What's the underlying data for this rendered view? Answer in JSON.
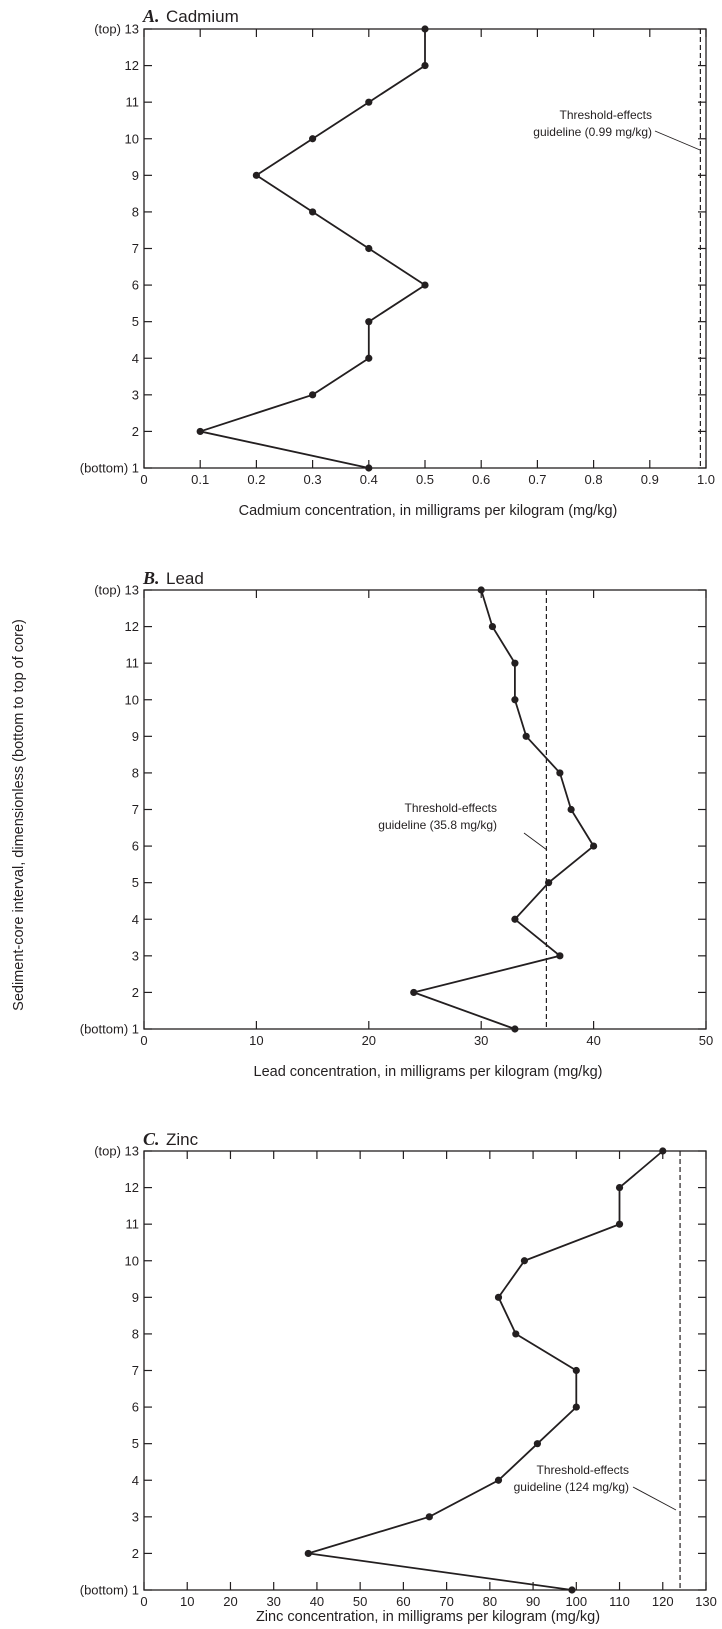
{
  "shared": {
    "ylabel": "Sediment-core interval, dimensionless (bottom to top of core)",
    "ylim": [
      1,
      13
    ],
    "y_ticks": [
      "(bottom) 1",
      "2",
      "3",
      "4",
      "5",
      "6",
      "7",
      "8",
      "9",
      "10",
      "11",
      "12",
      "(top) 13"
    ]
  },
  "chart_data": [
    {
      "type": "line",
      "panel_letter": "A.",
      "title": "Cadmium",
      "xlabel": "Cadmium concentration, in milligrams per kilogram (mg/kg)",
      "xlim": [
        0,
        1.0
      ],
      "x_ticks": [
        "0",
        "0.1",
        "0.2",
        "0.3",
        "0.4",
        "0.5",
        "0.6",
        "0.7",
        "0.8",
        "0.9",
        "1.0"
      ],
      "x_tick_values": [
        0,
        0.1,
        0.2,
        0.3,
        0.4,
        0.5,
        0.6,
        0.7,
        0.8,
        0.9,
        1.0
      ],
      "series": [
        {
          "x": [
            0.4,
            0.1,
            0.3,
            0.4,
            0.4,
            0.5,
            0.4,
            0.3,
            0.2,
            0.3,
            0.4,
            0.5,
            0.5
          ],
          "y": [
            1,
            2,
            3,
            4,
            5,
            6,
            7,
            8,
            9,
            10,
            11,
            12,
            13
          ]
        }
      ],
      "threshold": {
        "value": 0.99,
        "label_line1": "Threshold-effects",
        "label_line2": "guideline (0.99 mg/kg)"
      },
      "grid": false
    },
    {
      "type": "line",
      "panel_letter": "B.",
      "title": "Lead",
      "xlabel": "Lead concentration, in milligrams per kilogram (mg/kg)",
      "xlim": [
        0,
        50
      ],
      "x_ticks": [
        "0",
        "10",
        "20",
        "30",
        "40",
        "50"
      ],
      "x_tick_values": [
        0,
        10,
        20,
        30,
        40,
        50
      ],
      "series": [
        {
          "x": [
            33,
            24,
            37,
            33,
            36,
            40,
            38,
            37,
            34,
            33,
            33,
            31,
            30
          ],
          "y": [
            1,
            2,
            3,
            4,
            5,
            6,
            7,
            8,
            9,
            10,
            11,
            12,
            13
          ]
        }
      ],
      "threshold": {
        "value": 35.8,
        "label_line1": "Threshold-effects",
        "label_line2": "guideline (35.8 mg/kg)"
      },
      "grid": false
    },
    {
      "type": "line",
      "panel_letter": "C.",
      "title": "Zinc",
      "xlabel": "Zinc concentration, in milligrams per kilogram (mg/kg)",
      "xlim": [
        0,
        130
      ],
      "x_ticks": [
        "0",
        "10",
        "20",
        "30",
        "40",
        "50",
        "60",
        "70",
        "80",
        "90",
        "100",
        "110",
        "120",
        "130"
      ],
      "x_tick_values": [
        0,
        10,
        20,
        30,
        40,
        50,
        60,
        70,
        80,
        90,
        100,
        110,
        120,
        130
      ],
      "series": [
        {
          "x": [
            99,
            38,
            66,
            82,
            91,
            100,
            100,
            86,
            82,
            88,
            110,
            110,
            120
          ],
          "y": [
            1,
            2,
            3,
            4,
            5,
            6,
            7,
            8,
            9,
            10,
            11,
            12,
            13
          ]
        }
      ],
      "threshold": {
        "value": 124,
        "label_line1": "Threshold-effects",
        "label_line2": "guideline (124 mg/kg)"
      },
      "grid": false
    }
  ]
}
